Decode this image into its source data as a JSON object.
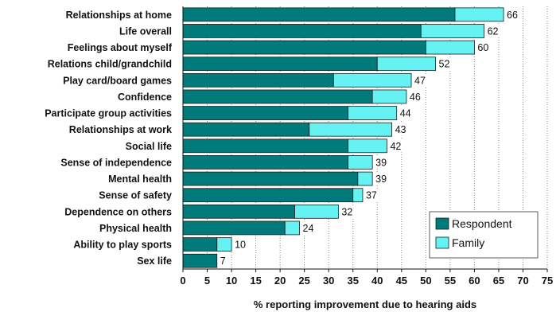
{
  "chart_data": {
    "type": "bar",
    "orientation": "horizontal",
    "stacked": true,
    "xlabel": "% reporting improvement due to hearing aids",
    "xlim": [
      0,
      75
    ],
    "xticks": [
      0,
      5,
      10,
      15,
      20,
      25,
      30,
      35,
      40,
      45,
      50,
      55,
      60,
      65,
      70,
      75
    ],
    "grid": "vertical dotted",
    "legend_position": "bottom-right",
    "categories": [
      "Relationships at home",
      "Life overall",
      "Feelings about myself",
      "Relations child/grandchild",
      "Play card/board games",
      "Confidence",
      "Participate group activities",
      "Relationships at work",
      "Social life",
      "Sense of independence",
      "Mental health",
      "Sense of safety",
      "Dependence on others",
      "Physical health",
      "Ability to play sports",
      "Sex life"
    ],
    "series": [
      {
        "name": "Respondent",
        "color": "#007a7a",
        "values": [
          56,
          49,
          50,
          40,
          31,
          39,
          34,
          26,
          34,
          34,
          36,
          35,
          23,
          21,
          7,
          7
        ]
      },
      {
        "name": "Family",
        "color": "#66f2f2",
        "values": [
          10,
          13,
          10,
          12,
          16,
          7,
          10,
          17,
          8,
          5,
          3,
          2,
          9,
          3,
          3,
          0
        ]
      }
    ],
    "totals": [
      66,
      62,
      60,
      52,
      47,
      46,
      44,
      43,
      42,
      39,
      39,
      37,
      32,
      24,
      10,
      7
    ]
  }
}
